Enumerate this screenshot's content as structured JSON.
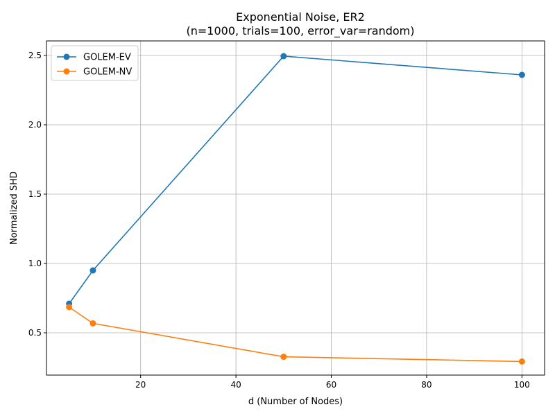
{
  "chart_data": {
    "type": "line",
    "title": "Exponential Noise, ER2",
    "subtitle": "(n=1000, trials=100, error_var=random)",
    "xlabel": "d (Number of Nodes)",
    "ylabel": "Normalized SHD",
    "xlim": [
      0.25,
      104.75
    ],
    "ylim": [
      0.195,
      2.605
    ],
    "xticks": [
      20,
      40,
      60,
      80,
      100
    ],
    "xtick_labels": [
      "20",
      "40",
      "60",
      "80",
      "100"
    ],
    "yticks": [
      0.5,
      1.0,
      1.5,
      2.0,
      2.5
    ],
    "ytick_labels": [
      "0.5",
      "1.0",
      "1.5",
      "2.0",
      "2.5"
    ],
    "grid": true,
    "legend_position": "top-left",
    "x": [
      5,
      10,
      50,
      100
    ],
    "series": [
      {
        "name": "GOLEM-EV",
        "color": "#1f77b4",
        "values": [
          0.71,
          0.95,
          2.495,
          2.36
        ]
      },
      {
        "name": "GOLEM-NV",
        "color": "#ff7f0e",
        "values": [
          0.685,
          0.568,
          0.327,
          0.293
        ]
      }
    ]
  }
}
